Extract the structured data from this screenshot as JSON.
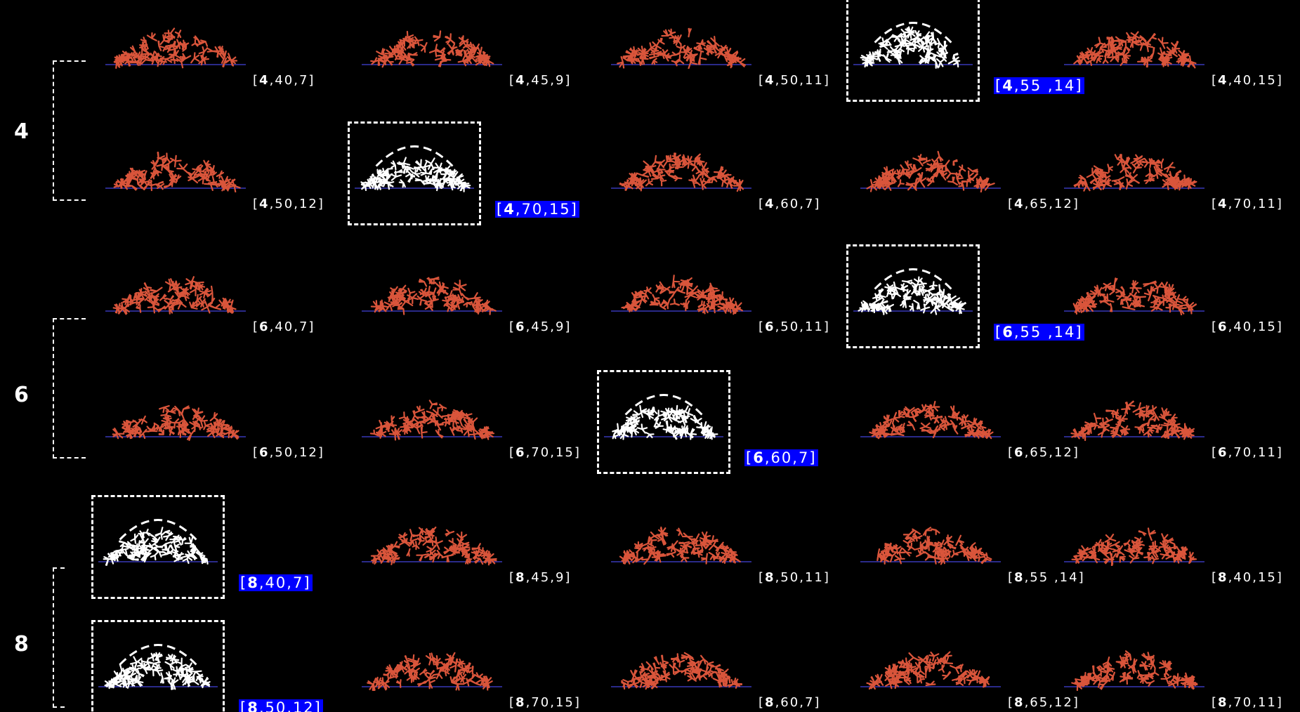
{
  "groups": [
    {
      "label": "4",
      "cells": [
        {
          "id": "4,40,7",
          "a": "4",
          "b": "40",
          "c": "7",
          "highlighted": false
        },
        {
          "id": "4,45,9",
          "a": "4",
          "b": "45",
          "c": "9",
          "highlighted": false
        },
        {
          "id": "4,50,11",
          "a": "4",
          "b": "50",
          "c": "11",
          "highlighted": false
        },
        {
          "id": "4,55,14",
          "a": "4",
          "b": "55 ",
          "c": "14",
          "highlighted": true
        },
        {
          "id": "4,40,15",
          "a": "4",
          "b": "40",
          "c": "15",
          "highlighted": false
        },
        {
          "id": "4,50,12",
          "a": "4",
          "b": "50",
          "c": "12",
          "highlighted": false
        },
        {
          "id": "4,70,15",
          "a": "4",
          "b": "70",
          "c": "15",
          "highlighted": true
        },
        {
          "id": "4,60,7",
          "a": "4",
          "b": "60",
          "c": "7",
          "highlighted": false
        },
        {
          "id": "4,65,12",
          "a": "4",
          "b": "65",
          "c": "12",
          "highlighted": false
        },
        {
          "id": "4,70,11",
          "a": "4",
          "b": "70",
          "c": "11",
          "highlighted": false
        }
      ]
    },
    {
      "label": "6",
      "cells": [
        {
          "id": "6,40,7",
          "a": "6",
          "b": "40",
          "c": "7",
          "highlighted": false
        },
        {
          "id": "6,45,9",
          "a": "6",
          "b": "45",
          "c": "9",
          "highlighted": false
        },
        {
          "id": "6,50,11",
          "a": "6",
          "b": "50",
          "c": "11",
          "highlighted": false
        },
        {
          "id": "6,55,14",
          "a": "6",
          "b": "55 ",
          "c": "14",
          "highlighted": true
        },
        {
          "id": "6,40,15",
          "a": "6",
          "b": "40",
          "c": "15",
          "highlighted": false
        },
        {
          "id": "6,50,12",
          "a": "6",
          "b": "50",
          "c": "12",
          "highlighted": false
        },
        {
          "id": "6,70,15",
          "a": "6",
          "b": "70",
          "c": "15",
          "highlighted": false
        },
        {
          "id": "6,60,7",
          "a": "6",
          "b": "60",
          "c": "7",
          "highlighted": true
        },
        {
          "id": "6,65,12",
          "a": "6",
          "b": "65",
          "c": "12",
          "highlighted": false
        },
        {
          "id": "6,70,11",
          "a": "6",
          "b": "70",
          "c": "11",
          "highlighted": false
        }
      ]
    },
    {
      "label": "8",
      "cells": [
        {
          "id": "8,40,7",
          "a": "8",
          "b": "40",
          "c": "7",
          "highlighted": true
        },
        {
          "id": "8,45,9",
          "a": "8",
          "b": "45",
          "c": "9",
          "highlighted": false
        },
        {
          "id": "8,50,11",
          "a": "8",
          "b": "50",
          "c": "11",
          "highlighted": false
        },
        {
          "id": "8,55,14",
          "a": "8",
          "b": "55 ",
          "c": "14",
          "highlighted": false
        },
        {
          "id": "8,40,15",
          "a": "8",
          "b": "40",
          "c": "15",
          "highlighted": false
        },
        {
          "id": "8,50,12",
          "a": "8",
          "b": "50",
          "c": "12",
          "highlighted": true
        },
        {
          "id": "8,70,15",
          "a": "8",
          "b": "70",
          "c": "15",
          "highlighted": false
        },
        {
          "id": "8,60,7",
          "a": "8",
          "b": "60",
          "c": "7",
          "highlighted": false
        },
        {
          "id": "8,65,12",
          "a": "8",
          "b": "65",
          "c": "12",
          "highlighted": false
        },
        {
          "id": "8,70,11",
          "a": "8",
          "b": "70",
          "c": "11",
          "highlighted": false
        }
      ]
    }
  ],
  "colors": {
    "pile": "#d9553b",
    "selected_pile": "#ffffff",
    "baseline": "#2a2a8a",
    "highlight": "#0000ff"
  }
}
